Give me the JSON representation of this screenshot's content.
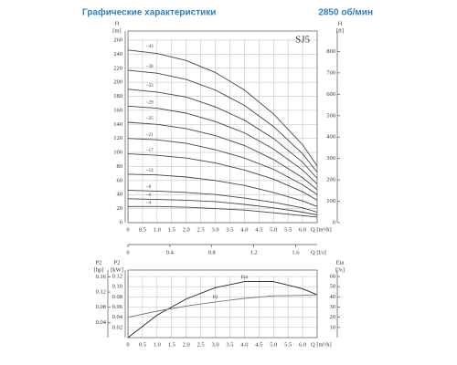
{
  "header": {
    "title": "Графические характеристики",
    "speed": "2850 об/мин"
  },
  "chart_data": [
    {
      "type": "line",
      "label": "SJ5",
      "ylabel": "H",
      "yunit": "[m]",
      "y2label": "H",
      "y2unit": "[ft]",
      "xlabel": "Q [m³/h]",
      "x2label": "Q [l/s]",
      "x": [
        0,
        1,
        2,
        3,
        4,
        5,
        6,
        6.5
      ],
      "xlim": [
        0,
        6.5
      ],
      "xticks": [
        0,
        0.5,
        {
          "value": 1,
          "label": "1.0"
        },
        1.5,
        {
          "value": 2,
          "label": "2.0"
        },
        2.5,
        {
          "value": 3,
          "label": "3.0"
        },
        3.5,
        {
          "value": 4,
          "label": "4.0"
        },
        4.5,
        {
          "value": 5,
          "label": "5.0"
        },
        5.5,
        {
          "value": 6,
          "label": "6.0"
        }
      ],
      "x2lim": [
        0,
        1.806
      ],
      "x2ticks": [
        0,
        0.4,
        0.8,
        1.2,
        1.6
      ],
      "ylim": [
        0,
        260
      ],
      "yticks": [
        0,
        20,
        40,
        60,
        80,
        100,
        120,
        140,
        160,
        180,
        200,
        220,
        240,
        260
      ],
      "y2lim": [
        0,
        853
      ],
      "y2ticks": [
        0,
        100,
        200,
        300,
        400,
        500,
        600,
        700,
        800
      ],
      "grid": true,
      "series": [
        {
          "name": "~43",
          "color": "#444",
          "values": [
            246,
            241,
            231,
            214,
            189,
            155,
            111,
            81
          ]
        },
        {
          "name": "~38",
          "color": "#444",
          "values": [
            217,
            213,
            204,
            189,
            167,
            137,
            98,
            72
          ]
        },
        {
          "name": "~33",
          "color": "#444",
          "values": [
            190,
            186,
            179,
            165,
            146,
            120,
            86,
            63
          ]
        },
        {
          "name": "~29",
          "color": "#444",
          "values": [
            166,
            163,
            156,
            144,
            128,
            105,
            75,
            55
          ]
        },
        {
          "name": "~25",
          "color": "#444",
          "values": [
            143,
            140,
            134,
            124,
            110,
            90,
            64,
            47
          ]
        },
        {
          "name": "~21",
          "color": "#444",
          "values": [
            120,
            118,
            113,
            104,
            92,
            76,
            54,
            40
          ]
        },
        {
          "name": "~17",
          "color": "#444",
          "values": [
            98,
            96,
            92,
            85,
            75,
            62,
            44,
            32
          ]
        },
        {
          "name": "~12",
          "color": "#444",
          "values": [
            69,
            68,
            65,
            60,
            53,
            43,
            31,
            23
          ]
        },
        {
          "name": "~8",
          "color": "#444",
          "values": [
            46,
            45,
            43,
            40,
            35,
            29,
            21,
            15
          ]
        },
        {
          "name": "~6",
          "color": "#444",
          "values": [
            34,
            33,
            32,
            30,
            26,
            21,
            15,
            11
          ]
        },
        {
          "name": "~4",
          "color": "#444",
          "values": [
            23,
            23,
            22,
            20,
            18,
            14,
            10,
            8
          ]
        }
      ]
    },
    {
      "type": "line",
      "ylabel": "P2",
      "yunit": "[kW]",
      "y3label": "P2",
      "y3unit": "[hp]",
      "y2label": "Eta",
      "y2unit": "[%]",
      "xlabel": "Q [m³/h]",
      "x": [
        0,
        1,
        2,
        3,
        4,
        5,
        6,
        6.5
      ],
      "xlim": [
        0,
        6.5
      ],
      "xticks": [
        0,
        0.5,
        {
          "value": 1,
          "label": "1.0"
        },
        1.5,
        {
          "value": 2,
          "label": "2.0"
        },
        2.5,
        {
          "value": 3,
          "label": "3.0"
        },
        3.5,
        {
          "value": 4,
          "label": "4.0"
        },
        4.5,
        {
          "value": 5,
          "label": "5.0"
        },
        5.5,
        {
          "value": 6,
          "label": "6.0"
        }
      ],
      "ylim": [
        0,
        0.12
      ],
      "yticks": [
        0.02,
        0.04,
        0.06,
        0.08,
        {
          "value": 0.1,
          "label": "0.10"
        },
        0.12
      ],
      "y3lim": [
        0,
        0.161
      ],
      "y3ticks": [
        0.04,
        0.08,
        0.12,
        0.16
      ],
      "y2lim": [
        0,
        60
      ],
      "y2ticks": [
        10,
        20,
        30,
        40,
        50,
        60
      ],
      "grid": true,
      "series": [
        {
          "name": "Eta",
          "color": "#222",
          "axis": "y2",
          "values": [
            0,
            22,
            38,
            49,
            55,
            55,
            48,
            42
          ]
        },
        {
          "name": "P2",
          "color": "#777",
          "values": [
            0.04,
            0.052,
            0.062,
            0.07,
            0.077,
            0.082,
            0.083,
            0.084
          ]
        }
      ]
    }
  ]
}
